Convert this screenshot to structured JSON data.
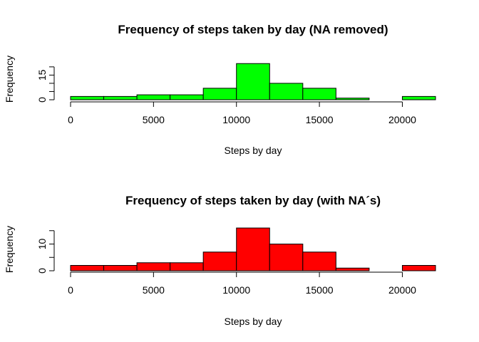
{
  "colors": {
    "panel_1_fill": "#00ff00",
    "panel_2_fill": "#ff0000",
    "bar_stroke": "#000000",
    "axis": "#000000"
  },
  "chart_data": [
    {
      "type": "bar",
      "subtype": "histogram",
      "title": "Frequency of steps taken by day (NA removed)",
      "xlabel": "Steps by day",
      "ylabel": "Frequency",
      "xlim": [
        0,
        22000
      ],
      "ylim": [
        0,
        26
      ],
      "x_ticks": [
        0,
        5000,
        10000,
        15000,
        20000
      ],
      "x_tick_labels": [
        "0",
        "5000",
        "10000",
        "15000",
        "20000"
      ],
      "y_ticks": [
        0,
        5,
        10,
        15,
        20
      ],
      "y_tick_labels": [
        "0",
        "",
        "",
        "15",
        ""
      ],
      "bin_edges": [
        0,
        2000,
        4000,
        6000,
        8000,
        10000,
        12000,
        14000,
        16000,
        18000,
        20000,
        22000
      ],
      "values": [
        2,
        2,
        3,
        3,
        7,
        22,
        10,
        7,
        1,
        0,
        2
      ],
      "fill": "#00ff00",
      "grid": false
    },
    {
      "type": "bar",
      "subtype": "histogram",
      "title": "Frequency of steps taken by day (with NA´s)",
      "xlabel": "Steps by day",
      "ylabel": "Frequency",
      "xlim": [
        0,
        22000
      ],
      "ylim": [
        0,
        16
      ],
      "x_ticks": [
        0,
        5000,
        10000,
        15000,
        20000
      ],
      "x_tick_labels": [
        "0",
        "5000",
        "10000",
        "15000",
        "20000"
      ],
      "y_ticks": [
        0,
        5,
        10,
        15
      ],
      "y_tick_labels": [
        "0",
        "",
        "10",
        ""
      ],
      "bin_edges": [
        0,
        2000,
        4000,
        6000,
        8000,
        10000,
        12000,
        14000,
        16000,
        18000,
        20000,
        22000
      ],
      "values": [
        2,
        2,
        3,
        3,
        7,
        16,
        10,
        7,
        1,
        0,
        2
      ],
      "fill": "#ff0000",
      "grid": false
    }
  ]
}
